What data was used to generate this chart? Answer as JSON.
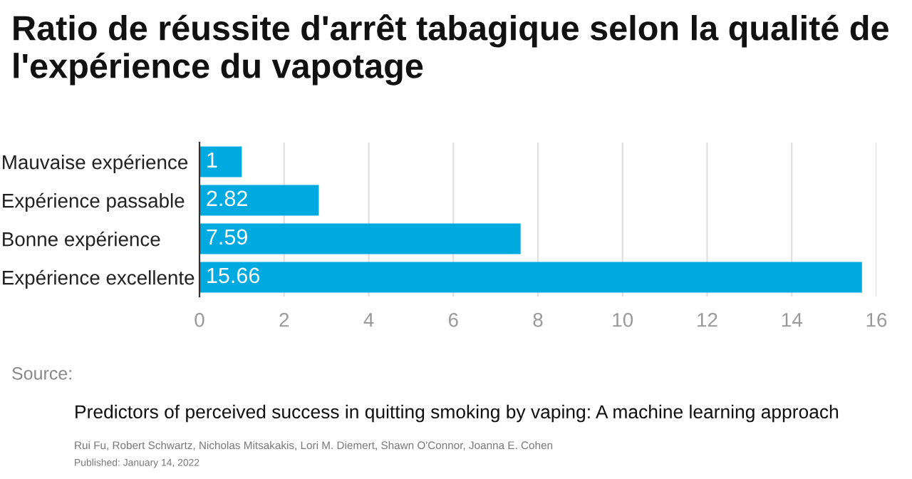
{
  "chart_data": {
    "type": "bar",
    "orientation": "horizontal",
    "title": "Ratio de réussite d'arrêt tabagique selon la qualité de l'expérience du vapotage",
    "categories": [
      "Mauvaise expérience",
      "Expérience passable",
      "Bonne expérience",
      "Expérience excellente"
    ],
    "values": [
      1,
      2.82,
      7.59,
      15.66
    ],
    "color": "#00a9e0",
    "xlim": [
      0,
      16
    ],
    "xticks": [
      0,
      2,
      4,
      6,
      8,
      10,
      12,
      14,
      16
    ],
    "grid": "x",
    "data_labels": true,
    "annotations": [
      "Source:",
      "Predictors of perceived success in quitting smoking by vaping: A machine learning approach",
      "Rui Fu, Robert Schwartz, Nicholas Mitsakakis, Lori M. Diemert, Shawn O'Connor, Joanna E. Cohen",
      "Published: January 14, 2022"
    ]
  }
}
